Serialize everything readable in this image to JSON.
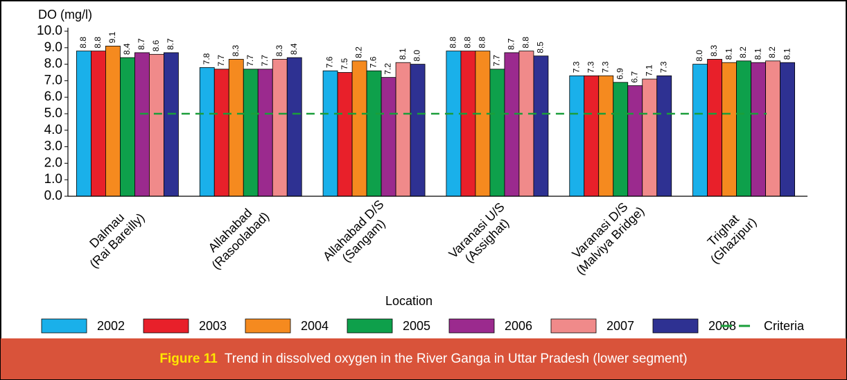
{
  "chart_data": {
    "type": "bar",
    "y_label": "DO (mg/l)",
    "x_label": "Location",
    "figure_label": "Figure 11",
    "caption": "Trend in dissolved oxygen in the River Ganga in Uttar Pradesh (lower segment)",
    "categories": [
      [
        "Dalmau",
        "(Rai Bareilly)"
      ],
      [
        "Allahabad",
        "(Rasoolabad)"
      ],
      [
        "Allahabad D/S",
        "(Sangam)"
      ],
      [
        "Varanasi U/S",
        "(Assighat)"
      ],
      [
        "Varanasi D/S",
        "(Malviya Bridge)"
      ],
      [
        "Trighat",
        "(Ghazipur)"
      ]
    ],
    "series": [
      {
        "name": "2002",
        "color": "#1ab0ea",
        "values": [
          8.8,
          7.8,
          7.6,
          8.8,
          7.3,
          8.0
        ],
        "value_labels": [
          "8.8",
          "7.8",
          "7.6",
          "8.8",
          "7.3",
          "8.0"
        ]
      },
      {
        "name": "2003",
        "color": "#e8202a",
        "values": [
          8.8,
          7.7,
          7.5,
          8.8,
          7.3,
          8.3
        ],
        "value_labels": [
          "8.8",
          "7.7",
          "7.5",
          "8.8",
          "7.3",
          "8.3"
        ]
      },
      {
        "name": "2004",
        "color": "#f58a1f",
        "values": [
          9.1,
          8.3,
          8.2,
          8.8,
          7.3,
          8.1
        ],
        "value_labels": [
          "9.1",
          "8.3",
          "8.2",
          "8.8",
          "7.3",
          "8.1"
        ]
      },
      {
        "name": "2005",
        "color": "#0ea04b",
        "values": [
          8.4,
          7.7,
          7.6,
          7.7,
          6.9,
          8.2
        ],
        "value_labels": [
          "8.4",
          "7.7",
          "7.6",
          "7.7",
          "6.9",
          "8.2"
        ]
      },
      {
        "name": "2006",
        "color": "#9b2a8e",
        "values": [
          8.7,
          7.7,
          7.2,
          8.7,
          6.7,
          8.1
        ],
        "value_labels": [
          "8.7",
          "7.7",
          "7.2",
          "8.7",
          "6.7",
          "8.1"
        ]
      },
      {
        "name": "2007",
        "color": "#f08a8a",
        "values": [
          8.6,
          8.3,
          8.1,
          8.8,
          7.1,
          8.2
        ],
        "value_labels": [
          "8.6",
          "8.3",
          "8.1",
          "8.8",
          "7.1",
          "8.2"
        ]
      },
      {
        "name": "2008",
        "color": "#2e3192",
        "values": [
          8.7,
          8.4,
          8.0,
          8.5,
          7.3,
          8.1
        ],
        "value_labels": [
          "8.7",
          "8.4",
          "8.0",
          "8.5",
          "7.3",
          "8.1"
        ]
      }
    ],
    "criteria": {
      "name": "Criteria",
      "value": 5,
      "color": "#1a9e3a"
    },
    "ylim": [
      0,
      10
    ],
    "yticks": [
      {
        "value": 0,
        "label": "0.0"
      },
      {
        "value": 1,
        "label": "1.0"
      },
      {
        "value": 2,
        "label": "2.0"
      },
      {
        "value": 3,
        "label": "3.0"
      },
      {
        "value": 4,
        "label": "4.0"
      },
      {
        "value": 5,
        "label": "5.0"
      },
      {
        "value": 6,
        "label": "6.0"
      },
      {
        "value": 7,
        "label": "7.0"
      },
      {
        "value": 8,
        "label": "8.0"
      },
      {
        "value": 9,
        "label": "9.0"
      },
      {
        "value": 10,
        "label": "10.0"
      }
    ],
    "grid": false
  }
}
